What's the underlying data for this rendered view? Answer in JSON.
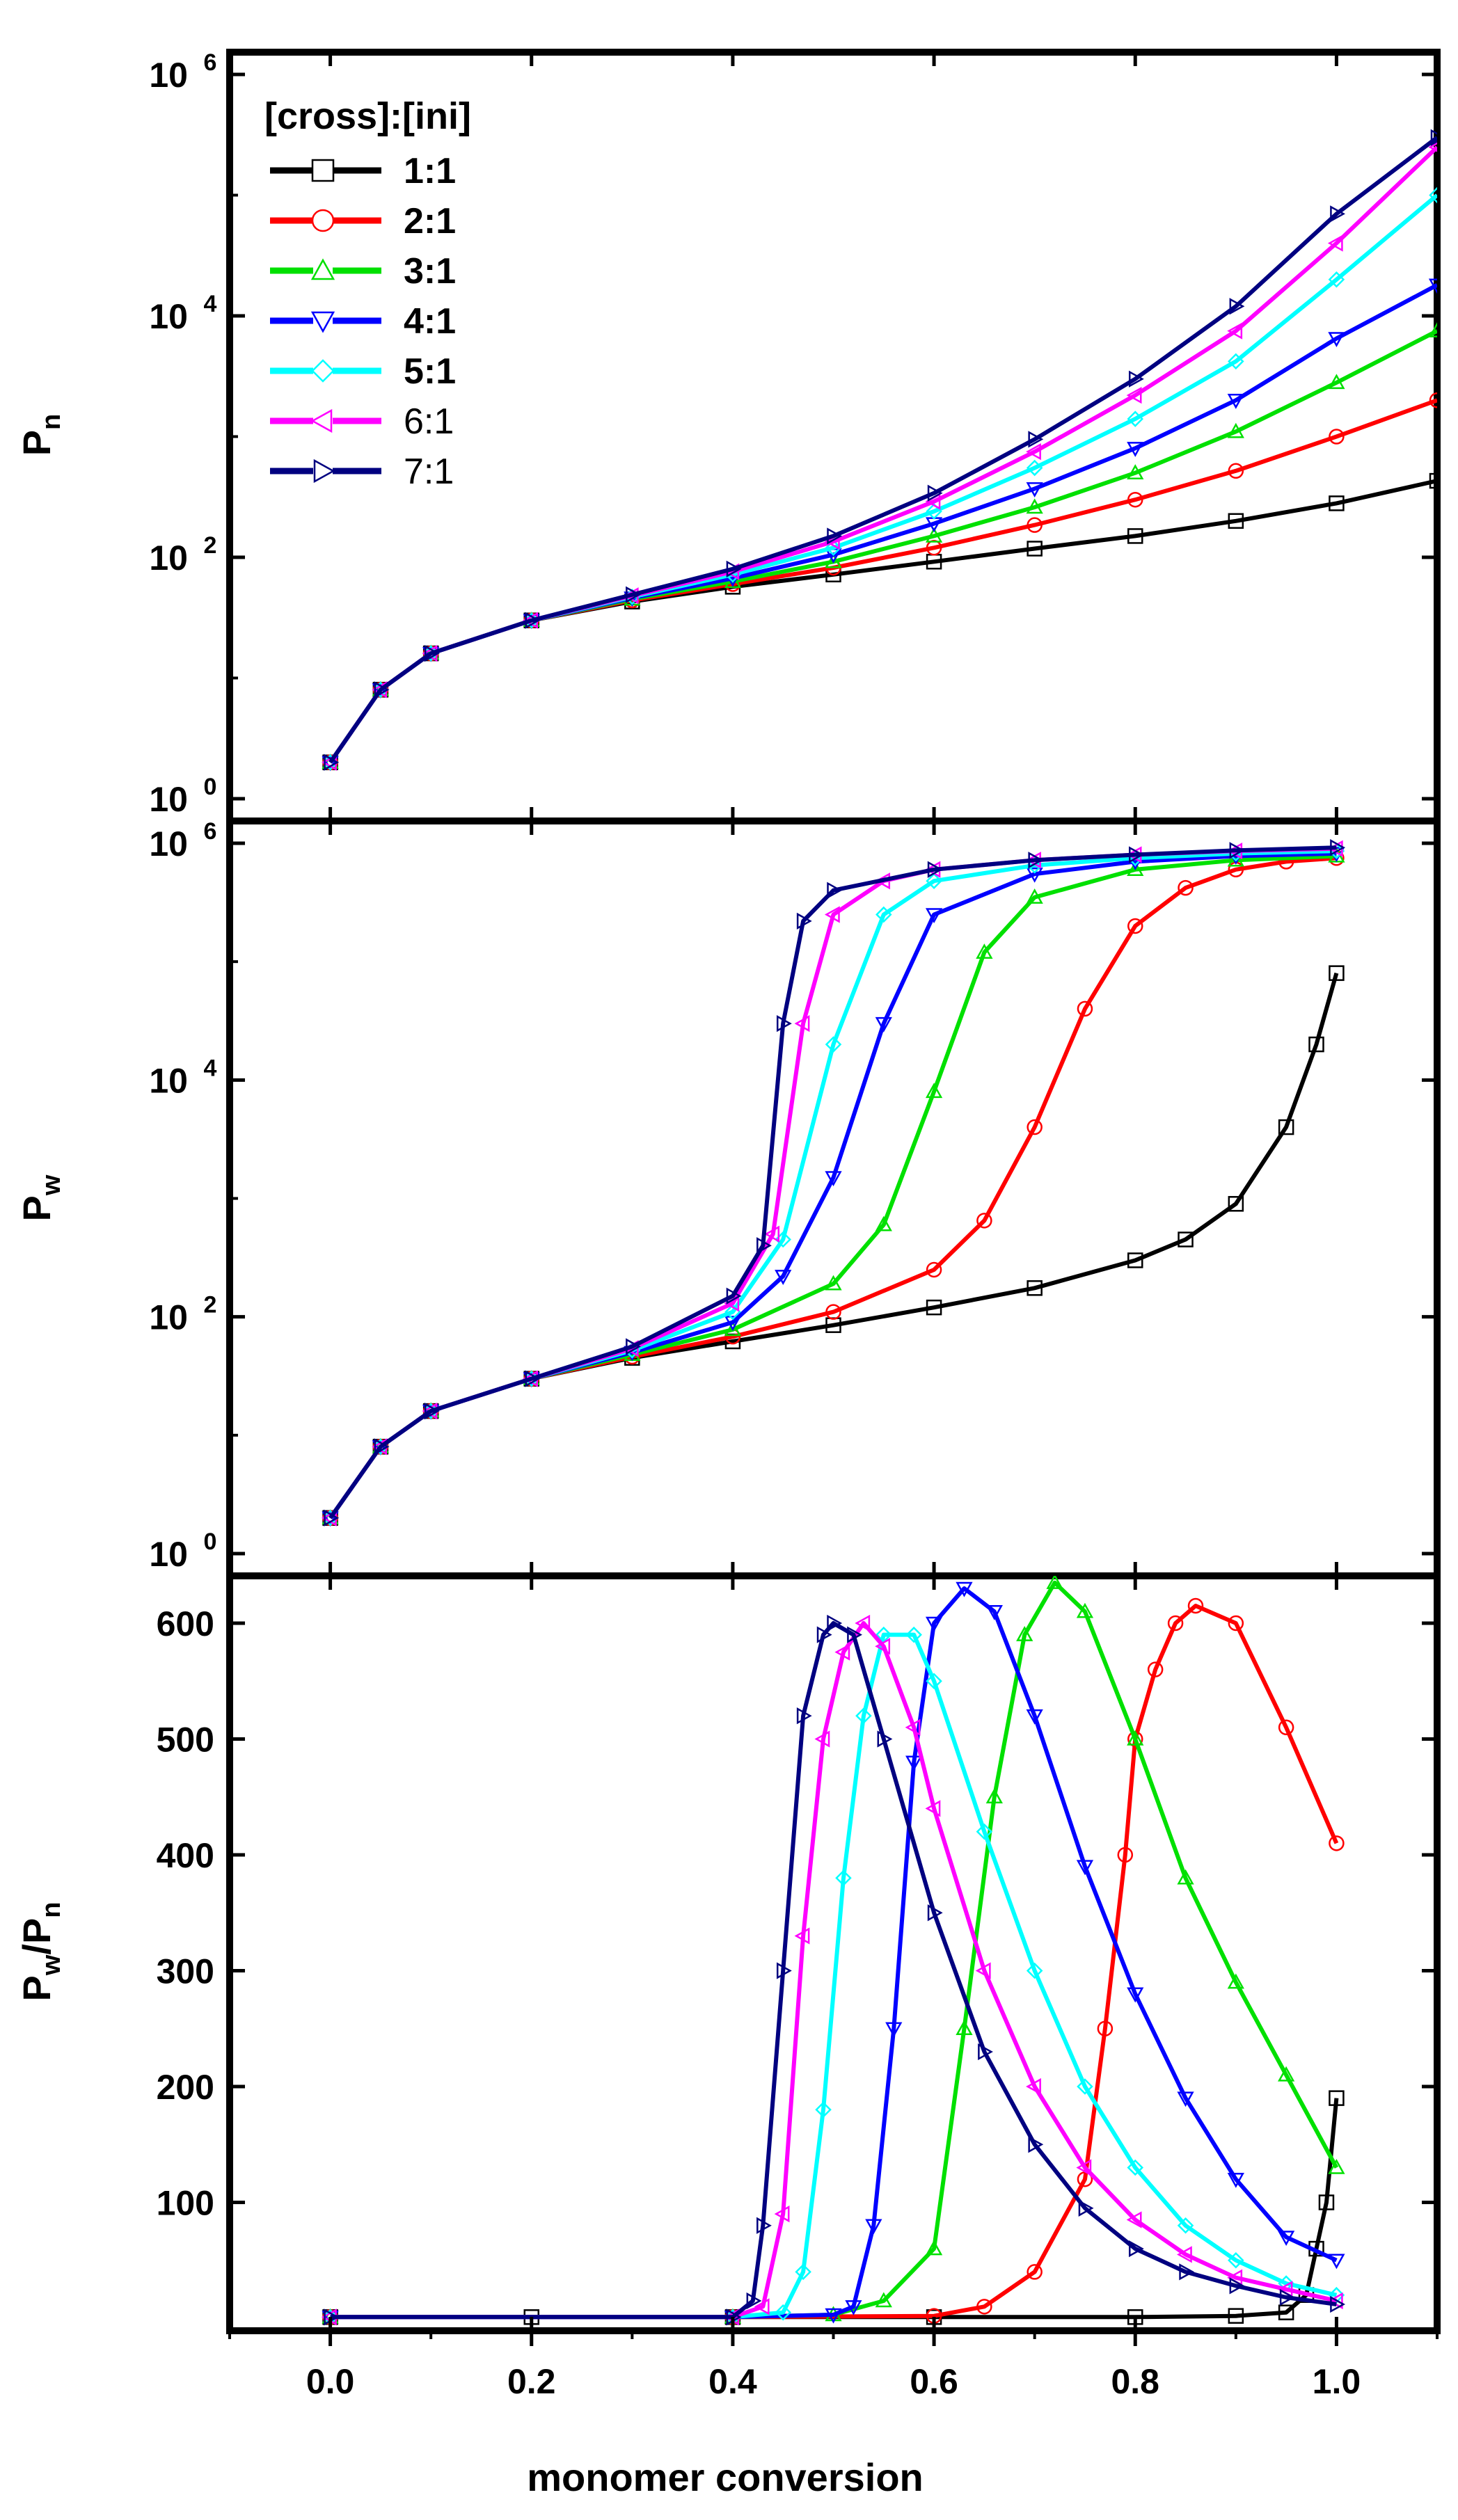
{
  "chart_data": {
    "type": "line",
    "layout": "three vertically stacked panels sharing one x-axis",
    "xlabel": "monomer conversion",
    "xlim": [
      -0.1,
      1.1
    ],
    "x_ticks": [
      0.0,
      0.2,
      0.4,
      0.6,
      0.8,
      1.0
    ],
    "x_tick_labels": [
      "0.0",
      "0.2",
      "0.4",
      "0.6",
      "0.8",
      "1.0"
    ],
    "legend": {
      "title": "[cross]:[ini]",
      "position": "top-left of top panel",
      "entries": [
        {
          "label": "1:1",
          "color": "#000000",
          "marker": "square",
          "bold": true
        },
        {
          "label": "2:1",
          "color": "#ff0000",
          "marker": "circle",
          "bold": true
        },
        {
          "label": "3:1",
          "color": "#00e000",
          "marker": "triangle-up",
          "bold": true
        },
        {
          "label": "4:1",
          "color": "#0000ff",
          "marker": "triangle-down",
          "bold": true
        },
        {
          "label": "5:1",
          "color": "#00ffff",
          "marker": "diamond",
          "bold": true
        },
        {
          "label": "6:1",
          "color": "#ff00ff",
          "marker": "triangle-left",
          "bold": false
        },
        {
          "label": "7:1",
          "color": "#000080",
          "marker": "triangle-right",
          "bold": false
        }
      ]
    },
    "panels": [
      {
        "name": "Pn",
        "ylabel_main": "P",
        "ylabel_sub": "n",
        "yscale": "log",
        "ylim_exponent": [
          0,
          6
        ],
        "y_ticks": [
          {
            "base": "10",
            "exp": "6",
            "value": 1000000
          },
          {
            "base": "10",
            "exp": "4",
            "value": 10000
          },
          {
            "base": "10",
            "exp": "2",
            "value": 100
          },
          {
            "base": "10",
            "exp": "0",
            "value": 1
          }
        ],
        "series": [
          {
            "name": "1:1",
            "x": [
              0.0,
              0.05,
              0.1,
              0.2,
              0.3,
              0.4,
              0.5,
              0.6,
              0.7,
              0.8,
              0.9,
              1.0,
              1.1
            ],
            "y": [
              2,
              8,
              16,
              30,
              43,
              57,
              72,
              92,
              118,
              150,
              200,
              280,
              430
            ]
          },
          {
            "name": "2:1",
            "x": [
              0.0,
              0.05,
              0.1,
              0.2,
              0.3,
              0.4,
              0.5,
              0.6,
              0.7,
              0.8,
              0.9,
              1.0,
              1.1
            ],
            "y": [
              2,
              8,
              16,
              30,
              44,
              60,
              82,
              120,
              185,
              300,
              520,
              1000,
              2000
            ]
          },
          {
            "name": "3:1",
            "x": [
              0.0,
              0.05,
              0.1,
              0.2,
              0.3,
              0.4,
              0.5,
              0.6,
              0.7,
              0.8,
              0.9,
              1.0,
              1.1
            ],
            "y": [
              2,
              8,
              16,
              30,
              45,
              63,
              92,
              150,
              260,
              500,
              1100,
              2800,
              7500
            ]
          },
          {
            "name": "4:1",
            "x": [
              0.0,
              0.05,
              0.1,
              0.2,
              0.3,
              0.4,
              0.5,
              0.6,
              0.7,
              0.8,
              0.9,
              1.0,
              1.1
            ],
            "y": [
              2,
              8,
              16,
              30,
              46,
              67,
              105,
              190,
              370,
              800,
              2000,
              6500,
              18000
            ]
          },
          {
            "name": "5:1",
            "x": [
              0.0,
              0.05,
              0.1,
              0.2,
              0.3,
              0.4,
              0.5,
              0.6,
              0.7,
              0.8,
              0.9,
              1.0,
              1.1
            ],
            "y": [
              2,
              8,
              16,
              30,
              47,
              72,
              120,
              240,
              550,
              1400,
              4200,
              20000,
              100000
            ]
          },
          {
            "name": "6:1",
            "x": [
              0.0,
              0.05,
              0.1,
              0.2,
              0.3,
              0.4,
              0.5,
              0.6,
              0.7,
              0.8,
              0.9,
              1.0,
              1.1
            ],
            "y": [
              2,
              8,
              16,
              30,
              48,
              76,
              135,
              290,
              750,
              2200,
              7500,
              40000,
              250000
            ]
          },
          {
            "name": "7:1",
            "x": [
              0.0,
              0.05,
              0.1,
              0.2,
              0.3,
              0.4,
              0.5,
              0.6,
              0.7,
              0.8,
              0.9,
              1.0,
              1.1
            ],
            "y": [
              2,
              8,
              16,
              30,
              49,
              80,
              150,
              340,
              950,
              3000,
              12000,
              70000,
              300000
            ]
          }
        ]
      },
      {
        "name": "Pw",
        "ylabel_main": "P",
        "ylabel_sub": "w",
        "yscale": "log",
        "ylim_exponent": [
          0,
          6
        ],
        "y_ticks": [
          {
            "base": "10",
            "exp": "6",
            "value": 1000000
          },
          {
            "base": "10",
            "exp": "4",
            "value": 10000
          },
          {
            "base": "10",
            "exp": "2",
            "value": 100
          },
          {
            "base": "10",
            "exp": "0",
            "value": 1
          }
        ],
        "series": [
          {
            "name": "1:1",
            "x": [
              0.0,
              0.05,
              0.1,
              0.2,
              0.3,
              0.4,
              0.5,
              0.6,
              0.7,
              0.8,
              0.85,
              0.9,
              0.95,
              0.98,
              1.0
            ],
            "y": [
              2,
              8,
              16,
              30,
              45,
              62,
              85,
              120,
              175,
              300,
              450,
              900,
              4000,
              20000,
              80000
            ]
          },
          {
            "name": "2:1",
            "x": [
              0.0,
              0.05,
              0.1,
              0.2,
              0.3,
              0.4,
              0.5,
              0.6,
              0.65,
              0.7,
              0.75,
              0.8,
              0.85,
              0.9,
              0.95,
              1.0
            ],
            "y": [
              2,
              8,
              16,
              30,
              46,
              68,
              110,
              250,
              650,
              4000,
              40000,
              200000,
              420000,
              600000,
              700000,
              750000
            ]
          },
          {
            "name": "3:1",
            "x": [
              0.0,
              0.05,
              0.1,
              0.2,
              0.3,
              0.4,
              0.5,
              0.55,
              0.6,
              0.65,
              0.7,
              0.8,
              0.9,
              1.0
            ],
            "y": [
              2,
              8,
              16,
              30,
              48,
              78,
              190,
              600,
              8000,
              120000,
              350000,
              600000,
              720000,
              780000
            ]
          },
          {
            "name": "4:1",
            "x": [
              0.0,
              0.05,
              0.1,
              0.2,
              0.3,
              0.4,
              0.45,
              0.5,
              0.55,
              0.6,
              0.7,
              0.8,
              0.9,
              1.0
            ],
            "y": [
              2,
              8,
              16,
              30,
              50,
              90,
              220,
              1500,
              30000,
              250000,
              550000,
              700000,
              780000,
              820000
            ]
          },
          {
            "name": "5:1",
            "x": [
              0.0,
              0.05,
              0.1,
              0.2,
              0.3,
              0.4,
              0.45,
              0.5,
              0.55,
              0.6,
              0.7,
              0.8,
              0.9,
              1.0
            ],
            "y": [
              2,
              8,
              16,
              30,
              52,
              110,
              450,
              20000,
              250000,
              480000,
              650000,
              750000,
              820000,
              860000
            ]
          },
          {
            "name": "6:1",
            "x": [
              0.0,
              0.05,
              0.1,
              0.2,
              0.3,
              0.4,
              0.44,
              0.47,
              0.5,
              0.55,
              0.6,
              0.7,
              0.8,
              0.9,
              1.0
            ],
            "y": [
              2,
              8,
              16,
              30,
              54,
              130,
              500,
              30000,
              250000,
              480000,
              600000,
              720000,
              800000,
              860000,
              900000
            ]
          },
          {
            "name": "7:1",
            "x": [
              0.0,
              0.05,
              0.1,
              0.2,
              0.3,
              0.4,
              0.43,
              0.45,
              0.47,
              0.5,
              0.6,
              0.7,
              0.8,
              0.9,
              1.0
            ],
            "y": [
              2,
              8,
              16,
              30,
              56,
              150,
              400,
              30000,
              220000,
              400000,
              600000,
              720000,
              800000,
              870000,
              920000
            ]
          }
        ]
      },
      {
        "name": "Pw/Pn",
        "ylabel_main": "P",
        "ylabel_sub": "w",
        "ylabel_sep": "/P",
        "ylabel_sub2": "n",
        "yscale": "linear",
        "ylim": [
          0,
          630
        ],
        "y_ticks": [
          600,
          500,
          400,
          300,
          200,
          100
        ],
        "y_tick_labels": [
          "600",
          "500",
          "400",
          "300",
          "200",
          "100"
        ],
        "series": [
          {
            "name": "1:1",
            "x": [
              0.0,
              0.2,
              0.4,
              0.6,
              0.8,
              0.9,
              0.95,
              0.97,
              0.98,
              0.99,
              1.0
            ],
            "y": [
              1,
              1,
              1,
              1,
              1,
              2,
              5,
              20,
              60,
              100,
              190
            ]
          },
          {
            "name": "2:1",
            "x": [
              0.0,
              0.4,
              0.6,
              0.65,
              0.7,
              0.75,
              0.77,
              0.79,
              0.8,
              0.82,
              0.84,
              0.86,
              0.9,
              0.95,
              1.0
            ],
            "y": [
              1,
              1,
              2,
              10,
              40,
              120,
              250,
              400,
              500,
              560,
              600,
              615,
              600,
              510,
              410
            ]
          },
          {
            "name": "3:1",
            "x": [
              0.0,
              0.4,
              0.5,
              0.55,
              0.6,
              0.63,
              0.66,
              0.69,
              0.72,
              0.75,
              0.8,
              0.85,
              0.9,
              0.95,
              1.0
            ],
            "y": [
              1,
              1,
              3,
              15,
              60,
              250,
              450,
              590,
              635,
              610,
              500,
              380,
              290,
              210,
              130
            ]
          },
          {
            "name": "4:1",
            "x": [
              0.0,
              0.4,
              0.5,
              0.52,
              0.54,
              0.56,
              0.58,
              0.6,
              0.63,
              0.66,
              0.7,
              0.75,
              0.8,
              0.85,
              0.9,
              0.95,
              1.0
            ],
            "y": [
              1,
              1,
              3,
              10,
              80,
              250,
              480,
              600,
              630,
              610,
              520,
              390,
              280,
              190,
              120,
              70,
              50
            ]
          },
          {
            "name": "5:1",
            "x": [
              0.0,
              0.4,
              0.45,
              0.47,
              0.49,
              0.51,
              0.53,
              0.55,
              0.58,
              0.6,
              0.65,
              0.7,
              0.75,
              0.8,
              0.85,
              0.9,
              0.95,
              1.0
            ],
            "y": [
              1,
              1,
              5,
              40,
              180,
              380,
              520,
              590,
              590,
              550,
              420,
              300,
              200,
              130,
              80,
              50,
              30,
              20
            ]
          },
          {
            "name": "6:1",
            "x": [
              0.0,
              0.4,
              0.43,
              0.45,
              0.47,
              0.49,
              0.51,
              0.53,
              0.55,
              0.58,
              0.6,
              0.65,
              0.7,
              0.75,
              0.8,
              0.85,
              0.9,
              0.95,
              1.0
            ],
            "y": [
              1,
              1,
              10,
              90,
              330,
              500,
              575,
              600,
              580,
              510,
              440,
              300,
              200,
              130,
              85,
              55,
              35,
              25,
              15
            ]
          },
          {
            "name": "7:1",
            "x": [
              0.0,
              0.4,
              0.42,
              0.43,
              0.45,
              0.47,
              0.49,
              0.5,
              0.52,
              0.55,
              0.6,
              0.65,
              0.7,
              0.75,
              0.8,
              0.85,
              0.9,
              0.95,
              1.0
            ],
            "y": [
              1,
              1,
              15,
              80,
              300,
              520,
              590,
              600,
              590,
              500,
              350,
              230,
              150,
              95,
              60,
              40,
              28,
              18,
              12
            ]
          }
        ]
      }
    ]
  }
}
